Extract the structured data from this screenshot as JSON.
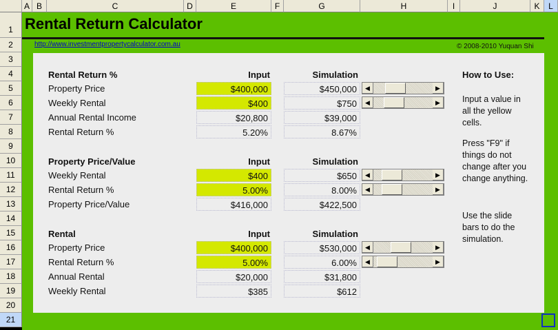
{
  "columns": [
    "A",
    "B",
    "C",
    "D",
    "E",
    "F",
    "G",
    "H",
    "I",
    "J",
    "K",
    "L"
  ],
  "rows": [
    "1",
    "2",
    "3",
    "4",
    "5",
    "6",
    "7",
    "8",
    "9",
    "10",
    "11",
    "12",
    "13",
    "14",
    "15",
    "16",
    "17",
    "18",
    "19",
    "20",
    "21"
  ],
  "title": "Rental Return Calculator",
  "link": "http://www.investmentpropertycalculator.com.au",
  "copyright": "© 2008-2010 Yuquan Shi",
  "input_header": "Input",
  "simulation_header": "Simulation",
  "colors": {
    "green": "#5cbf00",
    "yellow": "#d4e800",
    "panel": "#ededed"
  },
  "sections": [
    {
      "title": "Rental Return %",
      "row": 4,
      "items": [
        {
          "label": "Property Price",
          "input": "$400,000",
          "sim": "$450,000",
          "editable": true,
          "slider": 0.3
        },
        {
          "label": "Weekly Rental",
          "input": "$400",
          "sim": "$750",
          "editable": true,
          "slider": 0.25
        },
        {
          "label": "Annual Rental Income",
          "input": "$20,800",
          "sim": "$39,000",
          "editable": false
        },
        {
          "label": "Rental Return %",
          "input": "5.20%",
          "sim": "8.67%",
          "editable": false
        }
      ]
    },
    {
      "title": "Property Price/Value",
      "row": 10,
      "items": [
        {
          "label": "Weekly Rental",
          "input": "$400",
          "sim": "$650",
          "editable": true,
          "slider": 0.2
        },
        {
          "label": "Rental Return %",
          "input": "5.00%",
          "sim": "8.00%",
          "editable": true,
          "slider": 0.2
        },
        {
          "label": "Property Price/Value",
          "input": "$416,000",
          "sim": "$422,500",
          "editable": false
        }
      ]
    },
    {
      "title": "Rental",
      "row": 15,
      "items": [
        {
          "label": "Property Price",
          "input": "$400,000",
          "sim": "$530,000",
          "editable": true,
          "slider": 0.45
        },
        {
          "label": "Rental Return %",
          "input": "5.00%",
          "sim": "6.00%",
          "editable": true,
          "slider": 0.08
        },
        {
          "label": "Annual Rental",
          "input": "$20,000",
          "sim": "$31,800",
          "editable": false
        },
        {
          "label": "Weekly Rental",
          "input": "$385",
          "sim": "$612",
          "editable": false
        }
      ]
    }
  ],
  "help": {
    "title": "How to Use:",
    "paragraphs": [
      "Input a value in all the yellow cells.",
      "Press \"F9\" if things do not change after you change anything.",
      "Use the slide bars to do the simulation."
    ]
  }
}
